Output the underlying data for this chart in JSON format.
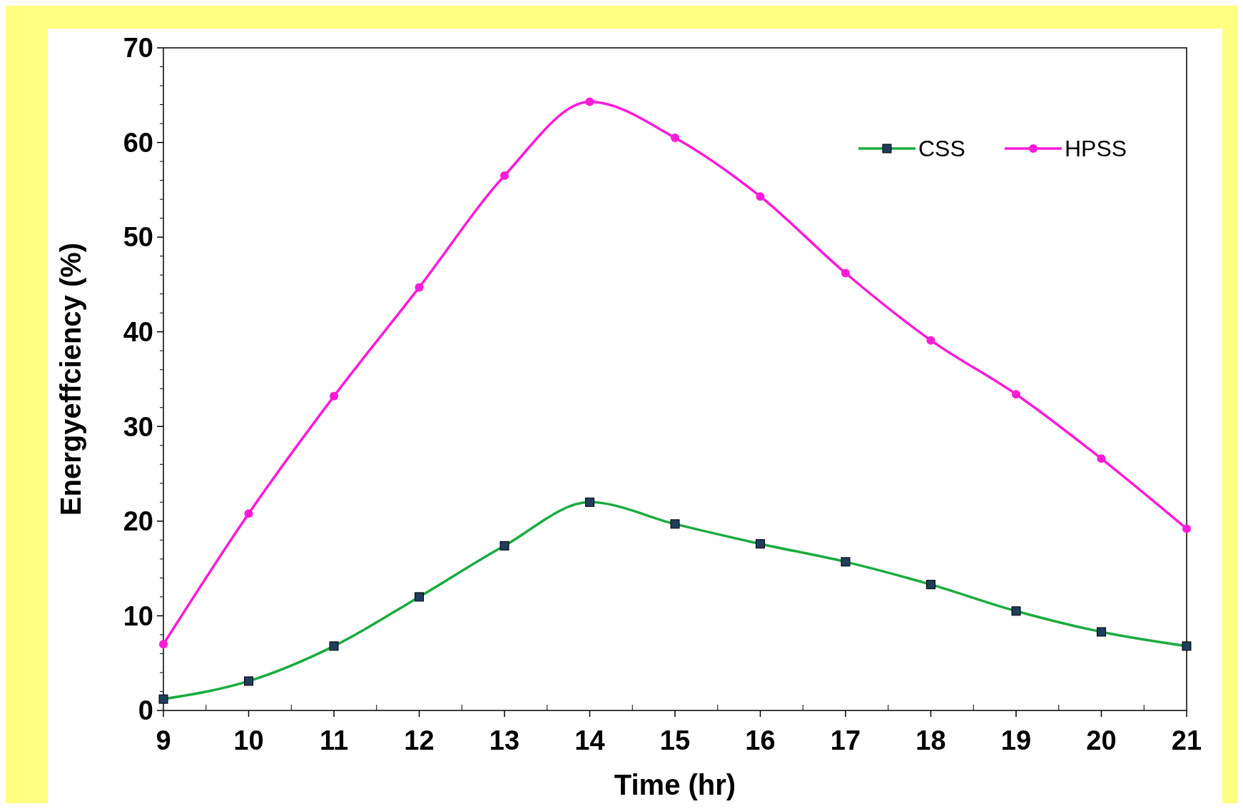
{
  "chart_data": {
    "type": "line",
    "xlabel": "Time (hr)",
    "ylabel": "Energyeffciency (%)",
    "x": [
      9,
      10,
      11,
      12,
      13,
      14,
      15,
      16,
      17,
      18,
      19,
      20,
      21
    ],
    "series": [
      {
        "name": "CSS",
        "color": "#1aab40",
        "marker": "square",
        "values": [
          1.2,
          3.1,
          6.8,
          12.0,
          17.4,
          22.0,
          19.7,
          17.6,
          15.7,
          13.3,
          10.5,
          8.3,
          6.8
        ]
      },
      {
        "name": "HPSS",
        "color": "#ff1ad9",
        "marker": "circle",
        "values": [
          7.0,
          20.8,
          33.2,
          44.7,
          56.5,
          64.3,
          60.5,
          54.3,
          46.2,
          39.1,
          33.4,
          26.6,
          19.2
        ]
      }
    ],
    "xlim": [
      9,
      21
    ],
    "xticks": [
      9,
      10,
      11,
      12,
      13,
      14,
      15,
      16,
      17,
      18,
      19,
      20,
      21
    ],
    "ylim": [
      0,
      70
    ],
    "yticks": [
      0,
      10,
      20,
      30,
      40,
      50,
      60,
      70
    ],
    "grid": false,
    "legend": "top right",
    "line_style": "solid"
  }
}
